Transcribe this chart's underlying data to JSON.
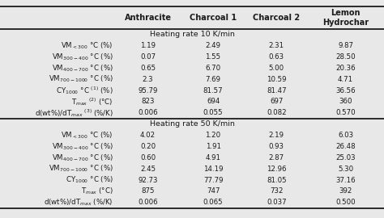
{
  "col_headers": [
    "Anthracite",
    "Charcoal 1",
    "Charcoal 2",
    "Lemon\nHydrochar"
  ],
  "section1_title": "Heating rate 10 K/min",
  "section2_title": "Heating rate 50 K/min",
  "rows_s1_labels": [
    "VM$_{<300}$ °C (%)",
    "VM$_{300-400}$ °C (%)",
    "VM$_{400-700}$ °C (%)",
    "VM$_{700-1000}$ °C (%)",
    "CY$_{1000}$ °C $^{(1)}$ (%)",
    "T$_{max}$ $^{(2)}$ (°C)",
    "d(wt%)/dT$_{max}$ $^{(3)}$ (%/K)"
  ],
  "rows_s2_labels": [
    "VM$_{<300}$ °C (%)",
    "VM$_{300-400}$ °C (%)",
    "VM$_{400-700}$ °C (%)",
    "VM$_{700-1000}$ °C (%)",
    "CY$_{1000}$ °C (%)",
    "T$_{max}$ (°C)",
    "d(wt%)/dT$_{max}$ (%/K)"
  ],
  "data_s1": [
    [
      "1.19",
      "2.49",
      "2.31",
      "9.87"
    ],
    [
      "0.07",
      "1.55",
      "0.63",
      "28.50"
    ],
    [
      "0.65",
      "6.70",
      "5.00",
      "20.36"
    ],
    [
      "2.3",
      "7.69",
      "10.59",
      "4.71"
    ],
    [
      "95.79",
      "81.57",
      "81.47",
      "36.56"
    ],
    [
      "823",
      "694",
      "697",
      "360"
    ],
    [
      "0.006",
      "0.055",
      "0.082",
      "0.570"
    ]
  ],
  "data_s2": [
    [
      "4.02",
      "1.20",
      "2.19",
      "6.03"
    ],
    [
      "0.20",
      "1.91",
      "0.93",
      "26.48"
    ],
    [
      "0.60",
      "4.91",
      "2.87",
      "25.03"
    ],
    [
      "2.45",
      "14.19",
      "12.96",
      "5.30"
    ],
    [
      "92.73",
      "77.79",
      "81.05",
      "37.16"
    ],
    [
      "875",
      "747",
      "732",
      "392"
    ],
    [
      "0.006",
      "0.065",
      "0.037",
      "0.500"
    ]
  ],
  "bg_color": "#e8e8e8",
  "text_color": "#1a1a1a",
  "header_fontsize": 7.0,
  "row_fontsize": 6.2,
  "section_fontsize": 6.8
}
